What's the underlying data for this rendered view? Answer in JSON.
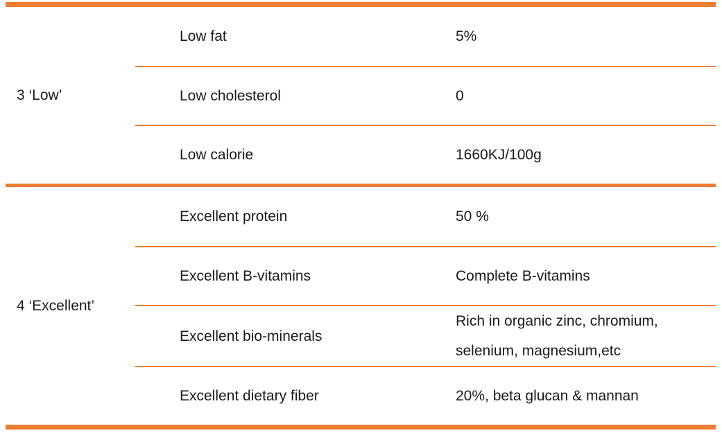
{
  "colors": {
    "accent": "#ED7D31",
    "text": "#1A1A1A",
    "background": "#FFFFFF"
  },
  "table": {
    "groups": [
      {
        "label": "3 ‘Low’",
        "rows": [
          {
            "attribute": "Low fat",
            "value": "5%"
          },
          {
            "attribute": "Low cholesterol",
            "value": "0"
          },
          {
            "attribute": "Low calorie",
            "value": "1660KJ/100g"
          }
        ]
      },
      {
        "label": "4 ‘Excellent’",
        "rows": [
          {
            "attribute": "Excellent protein",
            "value": "50 %"
          },
          {
            "attribute": "Excellent B-vitamins",
            "value": "Complete B-vitamins"
          },
          {
            "attribute": "Excellent bio-minerals",
            "value": "Rich in organic zinc, chromium, selenium, magnesium,etc"
          },
          {
            "attribute": "Excellent dietary fiber",
            "value": "20%, beta glucan & mannan"
          }
        ]
      }
    ]
  }
}
